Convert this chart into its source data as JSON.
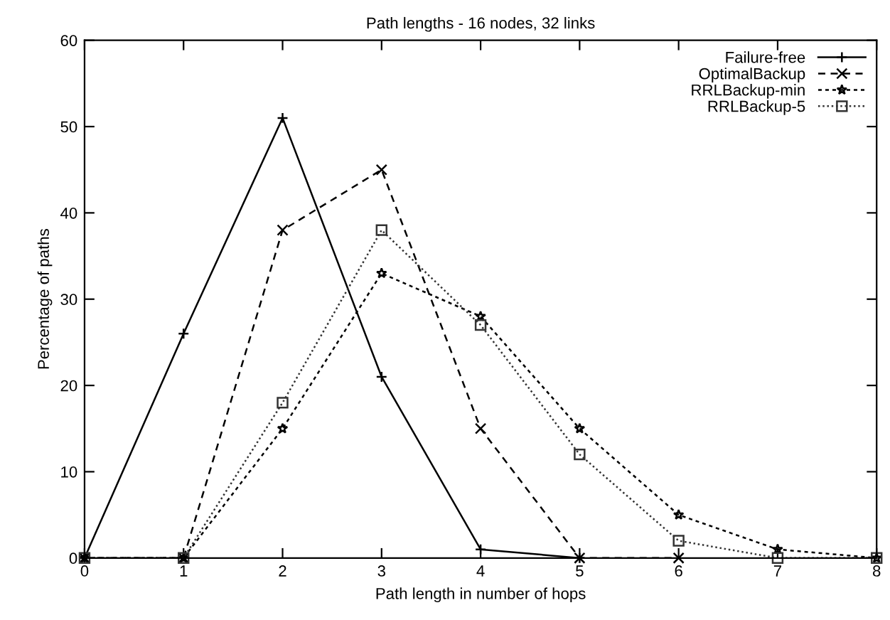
{
  "chart_data": {
    "type": "line",
    "title": "Path lengths - 16 nodes, 32 links",
    "xlabel": "Path length in number of hops",
    "ylabel": "Percentage of paths",
    "xlim": [
      0,
      8
    ],
    "xticks": [
      0,
      1,
      2,
      3,
      4,
      5,
      6,
      7,
      8
    ],
    "ylim": [
      0,
      60
    ],
    "yticks": [
      0,
      10,
      20,
      30,
      40,
      50,
      60
    ],
    "grid": false,
    "legend": "top right",
    "series": [
      {
        "name": "Failure-free",
        "color": "#000000",
        "marker": "cross",
        "line_style": "solid",
        "x": [
          0,
          1,
          2,
          3,
          4,
          5
        ],
        "values": [
          0,
          26,
          51,
          21,
          1,
          0
        ]
      },
      {
        "name": "OptimalBackup",
        "color": "#000000",
        "marker": "x",
        "line_style": "dashed",
        "x": [
          0,
          1,
          2,
          3,
          4,
          5,
          6
        ],
        "values": [
          0,
          0,
          38,
          45,
          15,
          0,
          0
        ]
      },
      {
        "name": "RRLBackup-min",
        "color": "#000000",
        "marker": "star",
        "line_style": "densely dashed",
        "x": [
          0,
          1,
          2,
          3,
          4,
          5,
          6,
          7,
          8
        ],
        "values": [
          0,
          0,
          15,
          33,
          28,
          15,
          5,
          1,
          0
        ]
      },
      {
        "name": "RRLBackup-5",
        "color": "#333333",
        "marker": "square",
        "line_style": "dotted",
        "x": [
          0,
          1,
          2,
          3,
          4,
          5,
          6,
          7,
          8
        ],
        "values": [
          0,
          0,
          18,
          38,
          27,
          12,
          2,
          0,
          0
        ]
      }
    ]
  }
}
